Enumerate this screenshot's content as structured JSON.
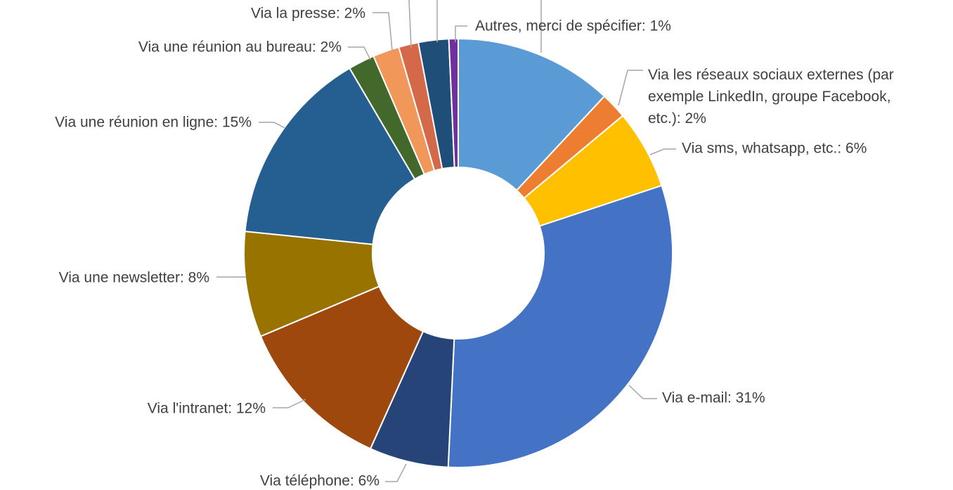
{
  "chart_data": {
    "type": "donut",
    "labels": [
      null,
      "Via les réseaux sociaux externes (par\nexemple LinkedIn, groupe Facebook,\netc.): 2%",
      "Via sms, whatsapp, etc.: 6%",
      "Via e-mail: 31%",
      "Via téléphone: 6%",
      "Via l'intranet: 12%",
      "Via une newsletter: 8%",
      "Via une réunion en ligne: 15%",
      "Via une réunion au bureau: 2%",
      "Via la presse: 2%",
      null,
      null,
      "Autres, merci de spécifier: 1%"
    ],
    "values": [
      12,
      2,
      6,
      31,
      6,
      12,
      8,
      15,
      2,
      2,
      1.5,
      2.3,
      0.7
    ],
    "colors": [
      "#5b9bd5",
      "#ed7d31",
      "#ffc000",
      "#4472c4",
      "#264478",
      "#9e480e",
      "#997300",
      "#255e91",
      "#43682b",
      "#f1975a",
      "#d4694a",
      "#1f4e79",
      "#7030a0"
    ]
  }
}
